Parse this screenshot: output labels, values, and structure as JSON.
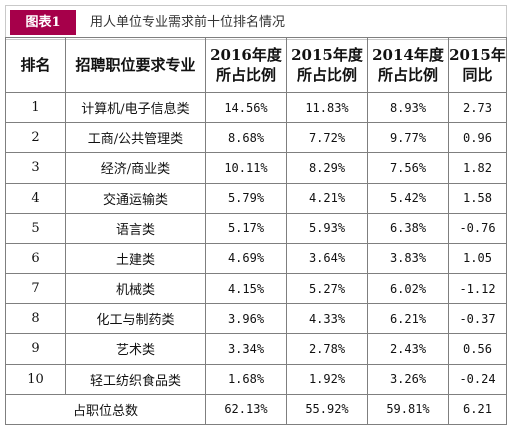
{
  "figure": {
    "tag": "图表1",
    "caption": "用人单位专业需求前十位排名情况"
  },
  "table": {
    "headers": {
      "rank": "排名",
      "major": "招聘职位要求专业",
      "y2016": [
        "2016年度",
        "所占比例"
      ],
      "y2015": [
        "2015年度",
        "所占比例"
      ],
      "y2014": [
        "2014年度",
        "所占比例"
      ],
      "yoy": [
        "2015年",
        "同比"
      ]
    },
    "rows": [
      {
        "rank": "1",
        "major": "计算机/电子信息类",
        "y2016": "14.56%",
        "y2015": "11.83%",
        "y2014": "8.93%",
        "yoy": "2.73"
      },
      {
        "rank": "2",
        "major": "工商/公共管理类",
        "y2016": "8.68%",
        "y2015": "7.72%",
        "y2014": "9.77%",
        "yoy": "0.96"
      },
      {
        "rank": "3",
        "major": "经济/商业类",
        "y2016": "10.11%",
        "y2015": "8.29%",
        "y2014": "7.56%",
        "yoy": "1.82"
      },
      {
        "rank": "4",
        "major": "交通运输类",
        "y2016": "5.79%",
        "y2015": "4.21%",
        "y2014": "5.42%",
        "yoy": "1.58"
      },
      {
        "rank": "5",
        "major": "语言类",
        "y2016": "5.17%",
        "y2015": "5.93%",
        "y2014": "6.38%",
        "yoy": "-0.76"
      },
      {
        "rank": "6",
        "major": "土建类",
        "y2016": "4.69%",
        "y2015": "3.64%",
        "y2014": "3.83%",
        "yoy": "1.05"
      },
      {
        "rank": "7",
        "major": "机械类",
        "y2016": "4.15%",
        "y2015": "5.27%",
        "y2014": "6.02%",
        "yoy": "-1.12"
      },
      {
        "rank": "8",
        "major": "化工与制药类",
        "y2016": "3.96%",
        "y2015": "4.33%",
        "y2014": "6.21%",
        "yoy": "-0.37"
      },
      {
        "rank": "9",
        "major": "艺术类",
        "y2016": "3.34%",
        "y2015": "2.78%",
        "y2014": "2.43%",
        "yoy": "0.56"
      },
      {
        "rank": "10",
        "major": "轻工纺织食品类",
        "y2016": "1.68%",
        "y2015": "1.92%",
        "y2014": "3.26%",
        "yoy": "-0.24"
      }
    ],
    "total": {
      "label": "占职位总数",
      "y2016": "62.13%",
      "y2015": "55.92%",
      "y2014": "59.81%",
      "yoy": "6.21"
    }
  },
  "colors": {
    "tag_bg": "#a6004a",
    "border": "#7f7f7f"
  }
}
